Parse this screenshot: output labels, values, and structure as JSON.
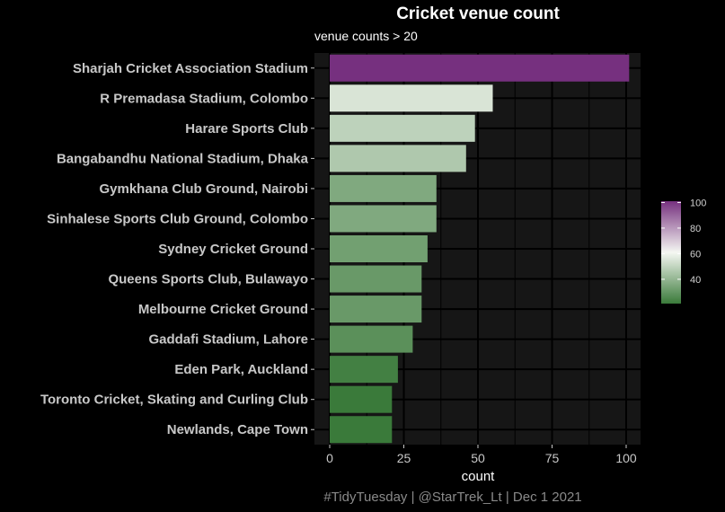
{
  "chart_data": {
    "type": "bar",
    "orientation": "horizontal",
    "title": "Cricket venue count",
    "subtitle": "venue counts > 20",
    "xlabel": "count",
    "ylabel": "",
    "caption": "#TidyTuesday | @StarTrek_Lt | Dec 1 2021",
    "categories": [
      "Sharjah Cricket Association Stadium",
      "R Premadasa Stadium, Colombo",
      "Harare Sports Club",
      "Bangabandhu National Stadium, Dhaka",
      "Gymkhana Club Ground, Nairobi",
      "Sinhalese Sports Club Ground, Colombo",
      "Sydney Cricket Ground",
      "Queens Sports Club, Bulawayo",
      "Melbourne Cricket Ground",
      "Gaddafi Stadium, Lahore",
      "Eden Park, Auckland",
      "Toronto Cricket, Skating and Curling Club",
      "Newlands, Cape Town"
    ],
    "values": [
      101,
      55,
      49,
      46,
      36,
      36,
      33,
      31,
      31,
      28,
      23,
      21,
      21
    ],
    "xlim": [
      0,
      105
    ],
    "x_ticks": [
      0,
      25,
      50,
      75,
      100
    ],
    "x_tick_labels": [
      "0",
      "25",
      "50",
      "75",
      "100"
    ],
    "grid": true,
    "legend": {
      "placement": "right",
      "type": "colorbar",
      "range": [
        21,
        101
      ],
      "ticks": [
        40,
        60,
        80,
        100
      ],
      "tick_labels": [
        "40",
        "60",
        "80",
        "100"
      ]
    },
    "colors": {
      "background": "#000000",
      "panel": "#161616",
      "grid": "#000000",
      "low": "#3a7a3a",
      "mid": "#f5f7f2",
      "high": "#76307f"
    }
  }
}
